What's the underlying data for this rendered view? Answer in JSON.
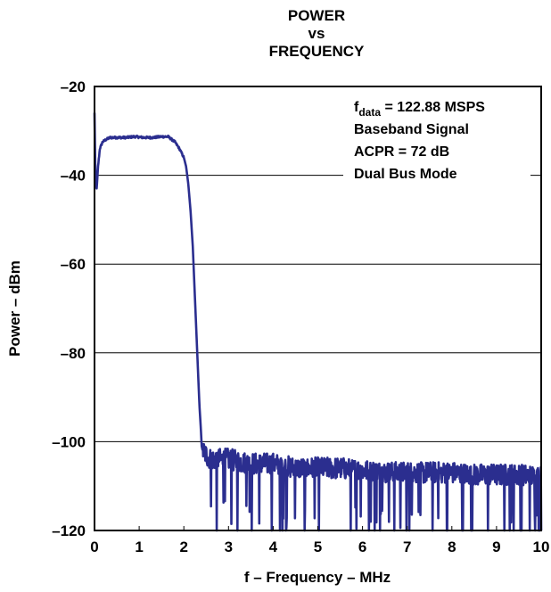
{
  "chart_data": {
    "type": "line",
    "title_lines": [
      "POWER",
      "vs",
      "FREQUENCY"
    ],
    "xlabel": "f – Frequency – MHz",
    "ylabel": "Power – dBm",
    "xlim": [
      0,
      10
    ],
    "ylim": [
      -120,
      -20
    ],
    "x_ticks": [
      "0",
      "1",
      "2",
      "3",
      "4",
      "5",
      "6",
      "7",
      "8",
      "9",
      "10"
    ],
    "y_ticks": [
      "–20",
      "–40",
      "–60",
      "–80",
      "–100",
      "–120"
    ],
    "grid": "horizontal",
    "line_color": "#2b2e8f",
    "annotation": {
      "line1_prefix": "f",
      "line1_sub": "data",
      "line1_rest": " = 122.88 MSPS",
      "line2": "Baseband Signal",
      "line3": "ACPR = 72 dB",
      "line4": "Dual Bus Mode",
      "placement": "top-right"
    },
    "series": [
      {
        "x": [
          0.0,
          0.02,
          0.05,
          0.08,
          0.12,
          0.18,
          0.25,
          0.35,
          0.5,
          0.7,
          0.9,
          1.1,
          1.3,
          1.5,
          1.65,
          1.8,
          1.9,
          2.0,
          2.05,
          2.1,
          2.15,
          2.2,
          2.25,
          2.3,
          2.35,
          2.38,
          2.4,
          2.42,
          2.5,
          2.6,
          3.0,
          3.5,
          4.0,
          4.5,
          5.0,
          5.5,
          6.0,
          6.5,
          7.0,
          7.5,
          8.0,
          8.5,
          9.0,
          9.5,
          10.0
        ],
        "y": [
          -26,
          -40,
          -43,
          -38,
          -34,
          -32.5,
          -32,
          -31.5,
          -31.5,
          -31.5,
          -31.3,
          -31.5,
          -31.5,
          -31.3,
          -31.3,
          -32.5,
          -34,
          -36,
          -38,
          -42,
          -48,
          -56,
          -68,
          -80,
          -92,
          -97,
          -101,
          -102,
          -103,
          -104,
          -104,
          -105,
          -105,
          -106,
          -106,
          -106,
          -106.5,
          -107,
          -107,
          -107,
          -107,
          -107.5,
          -107.5,
          -107.5,
          -108
        ]
      }
    ]
  }
}
